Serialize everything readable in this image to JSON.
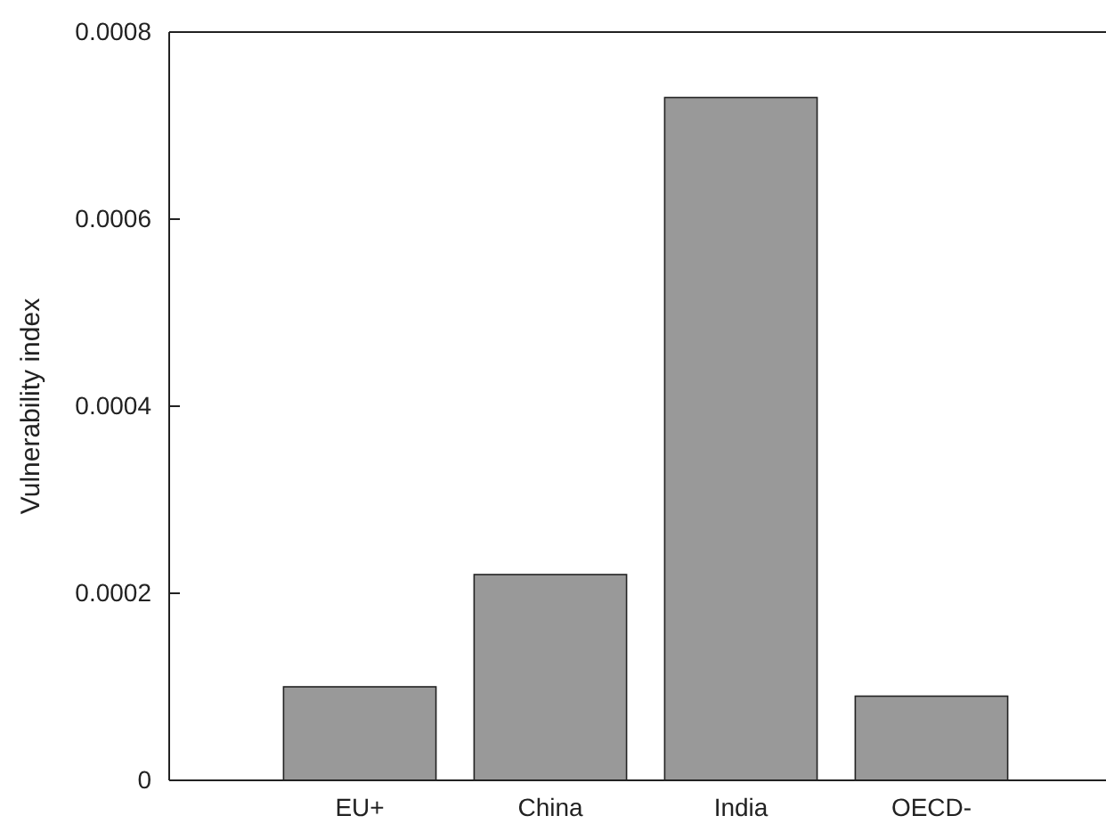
{
  "chart_data": {
    "type": "bar",
    "ylabel": "Vulnerability index",
    "categories": [
      "EU+",
      "China",
      "India",
      "OECD-"
    ],
    "values": [
      0.0001,
      0.00022,
      0.00073,
      9e-05
    ],
    "color": "#999999",
    "ylim": [
      0,
      0.0008
    ],
    "yticks": [
      0,
      0.0002,
      0.0004,
      0.0006,
      0.0008
    ],
    "grid": false
  }
}
